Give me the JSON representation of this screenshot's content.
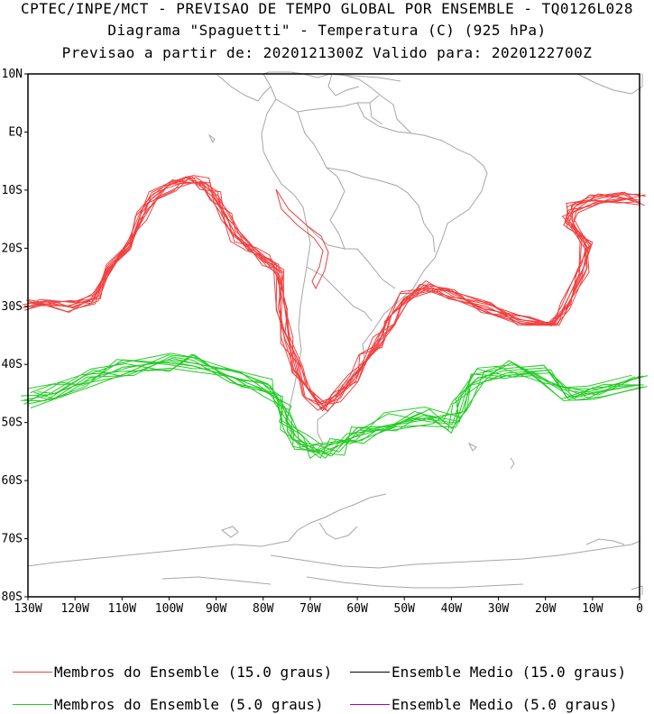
{
  "titles": {
    "line1": "CPTEC/INPE/MCT - PREVISAO DE TEMPO GLOBAL POR ENSEMBLE - TQ0126L028",
    "line2": "Diagrama \"Spaguetti\" - Temperatura (C) (925 hPa)",
    "line3": "Previsao a partir de: 2020121300Z  Valido para: 2020122700Z"
  },
  "axes": {
    "lat_labels": [
      "10N",
      "EQ",
      "10S",
      "20S",
      "30S",
      "40S",
      "50S",
      "60S",
      "70S",
      "80S"
    ],
    "lon_labels": [
      "130W",
      "120W",
      "110W",
      "100W",
      "90W",
      "80W",
      "70W",
      "60W",
      "50W",
      "40W",
      "30W",
      "20W",
      "10W",
      "0"
    ],
    "lat_range": [
      -80,
      10
    ],
    "lon_range": [
      -130,
      0
    ]
  },
  "colors": {
    "member_15": "#f04040",
    "member_5": "#22cc22",
    "mean_15": "#000000",
    "mean_5": "#aa00aa",
    "coast": "#a6a6a6"
  },
  "legend": [
    {
      "label": "Membros do Ensemble (15.0 graus)",
      "color": "#f04040"
    },
    {
      "label": "Ensemble Medio (15.0 graus)",
      "color": "#000000"
    },
    {
      "label": "Membros do Ensemble (5.0 graus)",
      "color": "#22cc22"
    },
    {
      "label": "Ensemble Medio (5.0 graus)",
      "color": "#aa00aa"
    }
  ]
}
